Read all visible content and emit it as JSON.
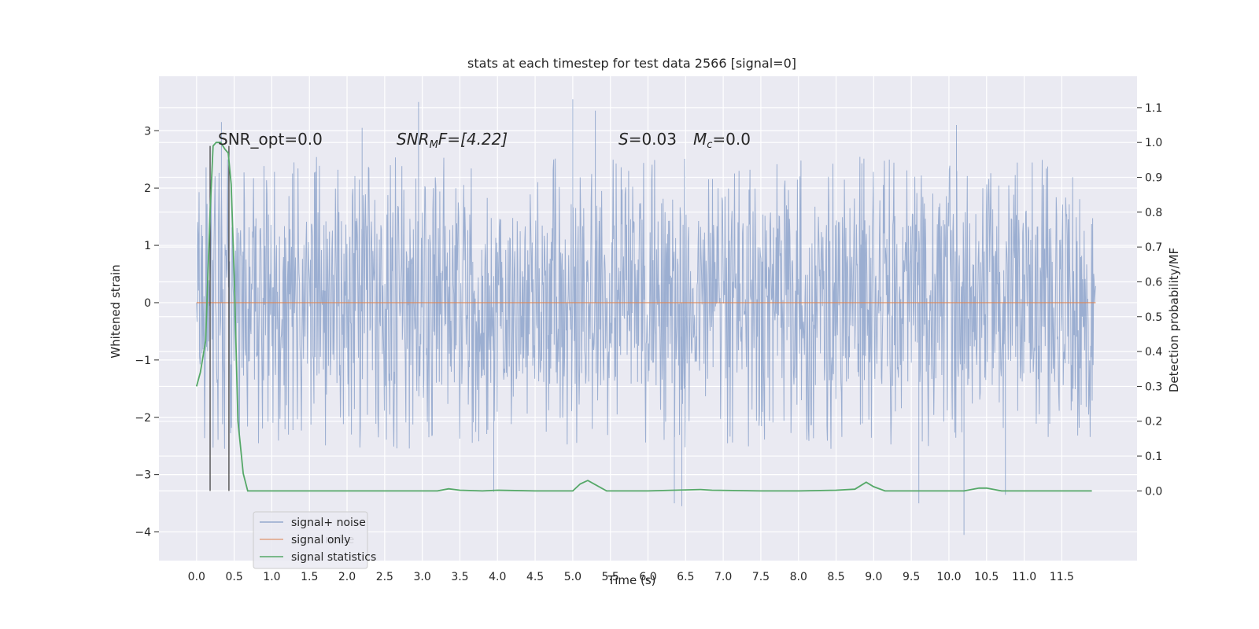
{
  "chart_data": {
    "type": "line",
    "title": "stats at each timestep for test data 2566 [signal=0]",
    "xlabel": "Time (s)",
    "ylabel_left": "Whitened strain",
    "ylabel_right": "Detection probability/MF",
    "xlim": [
      -0.5,
      12.5
    ],
    "ylim_left": [
      -4.5,
      3.95
    ],
    "ylim_right": [
      -0.2,
      1.19
    ],
    "x_ticks": [
      0.0,
      0.5,
      1.0,
      1.5,
      2.0,
      2.5,
      3.0,
      3.5,
      4.0,
      4.5,
      5.0,
      5.5,
      6.0,
      6.5,
      7.0,
      7.5,
      8.0,
      8.5,
      9.0,
      9.5,
      10.0,
      10.5,
      11.0,
      11.5
    ],
    "x_tick_labels": [
      "0.0",
      "0.5",
      "1.0",
      "1.5",
      "2.0",
      "2.5",
      "3.0",
      "3.5",
      "4.0",
      "4.5",
      "5.0",
      "5.5",
      "6.0",
      "6.5",
      "7.0",
      "7.5",
      "8.0",
      "8.5",
      "9.0",
      "9.5",
      "10.0",
      "10.5",
      "11.0",
      "11.5"
    ],
    "y_left_ticks": [
      -4,
      -3,
      -2,
      -1,
      0,
      1,
      2,
      3
    ],
    "y_left_tick_labels": [
      "−4",
      "−3",
      "−2",
      "−1",
      "0",
      "1",
      "2",
      "3"
    ],
    "y_right_ticks": [
      0.0,
      0.1,
      0.2,
      0.3,
      0.4,
      0.5,
      0.6,
      0.7,
      0.8,
      0.9,
      1.0,
      1.1
    ],
    "y_right_tick_labels": [
      "0.0",
      "0.1",
      "0.2",
      "0.3",
      "0.4",
      "0.5",
      "0.6",
      "0.7",
      "0.8",
      "0.9",
      "1.0",
      "1.1"
    ],
    "grid": true,
    "legend_position": "lower-left",
    "annotations": {
      "snr_opt": "SNR_opt=0.0",
      "snr_mf": {
        "base": "SNR",
        "sub": "M",
        "rest": "F=[4.22]"
      },
      "s": {
        "italic": "S",
        "rest": "=0.03"
      },
      "mc": {
        "base": "M",
        "sub": "c",
        "rest": "=0.0"
      },
      "legend_ghost": "noise"
    },
    "vertical_lines_x": [
      0.18,
      0.43
    ],
    "series": [
      {
        "name": "signal+ noise",
        "color": "#4c72b0",
        "style": "dense noise band",
        "x_range": [
          0.0,
          11.95
        ],
        "core_envelope": [
          -1.45,
          1.55
        ],
        "notable_peaks": [
          {
            "x": 0.33,
            "y": 3.15
          },
          {
            "x": 2.95,
            "y": 3.5
          },
          {
            "x": 5.0,
            "y": 3.55
          },
          {
            "x": 5.3,
            "y": 3.35
          },
          {
            "x": 10.1,
            "y": 3.1
          },
          {
            "x": 2.2,
            "y": 3.05
          },
          {
            "x": 6.35,
            "y": -3.5
          },
          {
            "x": 6.45,
            "y": -3.55
          },
          {
            "x": 9.6,
            "y": -3.5
          },
          {
            "x": 10.2,
            "y": -4.05
          },
          {
            "x": 3.95,
            "y": -3.3
          },
          {
            "x": 10.75,
            "y": -3.35
          }
        ]
      },
      {
        "name": "signal only",
        "color": "#dd8452",
        "x": [
          0.0,
          11.95
        ],
        "y": [
          0.0,
          0.0
        ]
      },
      {
        "name": "signal statistics",
        "color": "#55a868",
        "axis": "right",
        "x": [
          0.0,
          0.05,
          0.12,
          0.18,
          0.22,
          0.26,
          0.32,
          0.38,
          0.42,
          0.46,
          0.5,
          0.55,
          0.62,
          0.68,
          1.0,
          2.0,
          3.0,
          3.2,
          3.35,
          3.5,
          3.8,
          4.0,
          4.5,
          5.0,
          5.1,
          5.2,
          5.3,
          5.45,
          6.0,
          6.7,
          6.85,
          7.5,
          8.0,
          8.5,
          8.75,
          8.9,
          9.0,
          9.15,
          9.4,
          9.8,
          10.2,
          10.4,
          10.5,
          10.7,
          11.0,
          11.5,
          11.9
        ],
        "y": [
          0.3,
          0.34,
          0.43,
          0.8,
          0.99,
          1.0,
          1.0,
          0.98,
          0.97,
          0.88,
          0.62,
          0.2,
          0.05,
          0.0,
          0.0,
          0.0,
          0.0,
          0.0,
          0.006,
          0.002,
          0.0,
          0.002,
          0.0,
          0.0,
          0.02,
          0.03,
          0.018,
          0.0,
          0.0,
          0.004,
          0.002,
          0.0,
          0.0,
          0.002,
          0.005,
          0.025,
          0.012,
          0.0,
          0.0,
          0.0,
          0.0,
          0.008,
          0.008,
          0.0,
          0.0,
          0.0,
          0.0
        ]
      }
    ]
  }
}
